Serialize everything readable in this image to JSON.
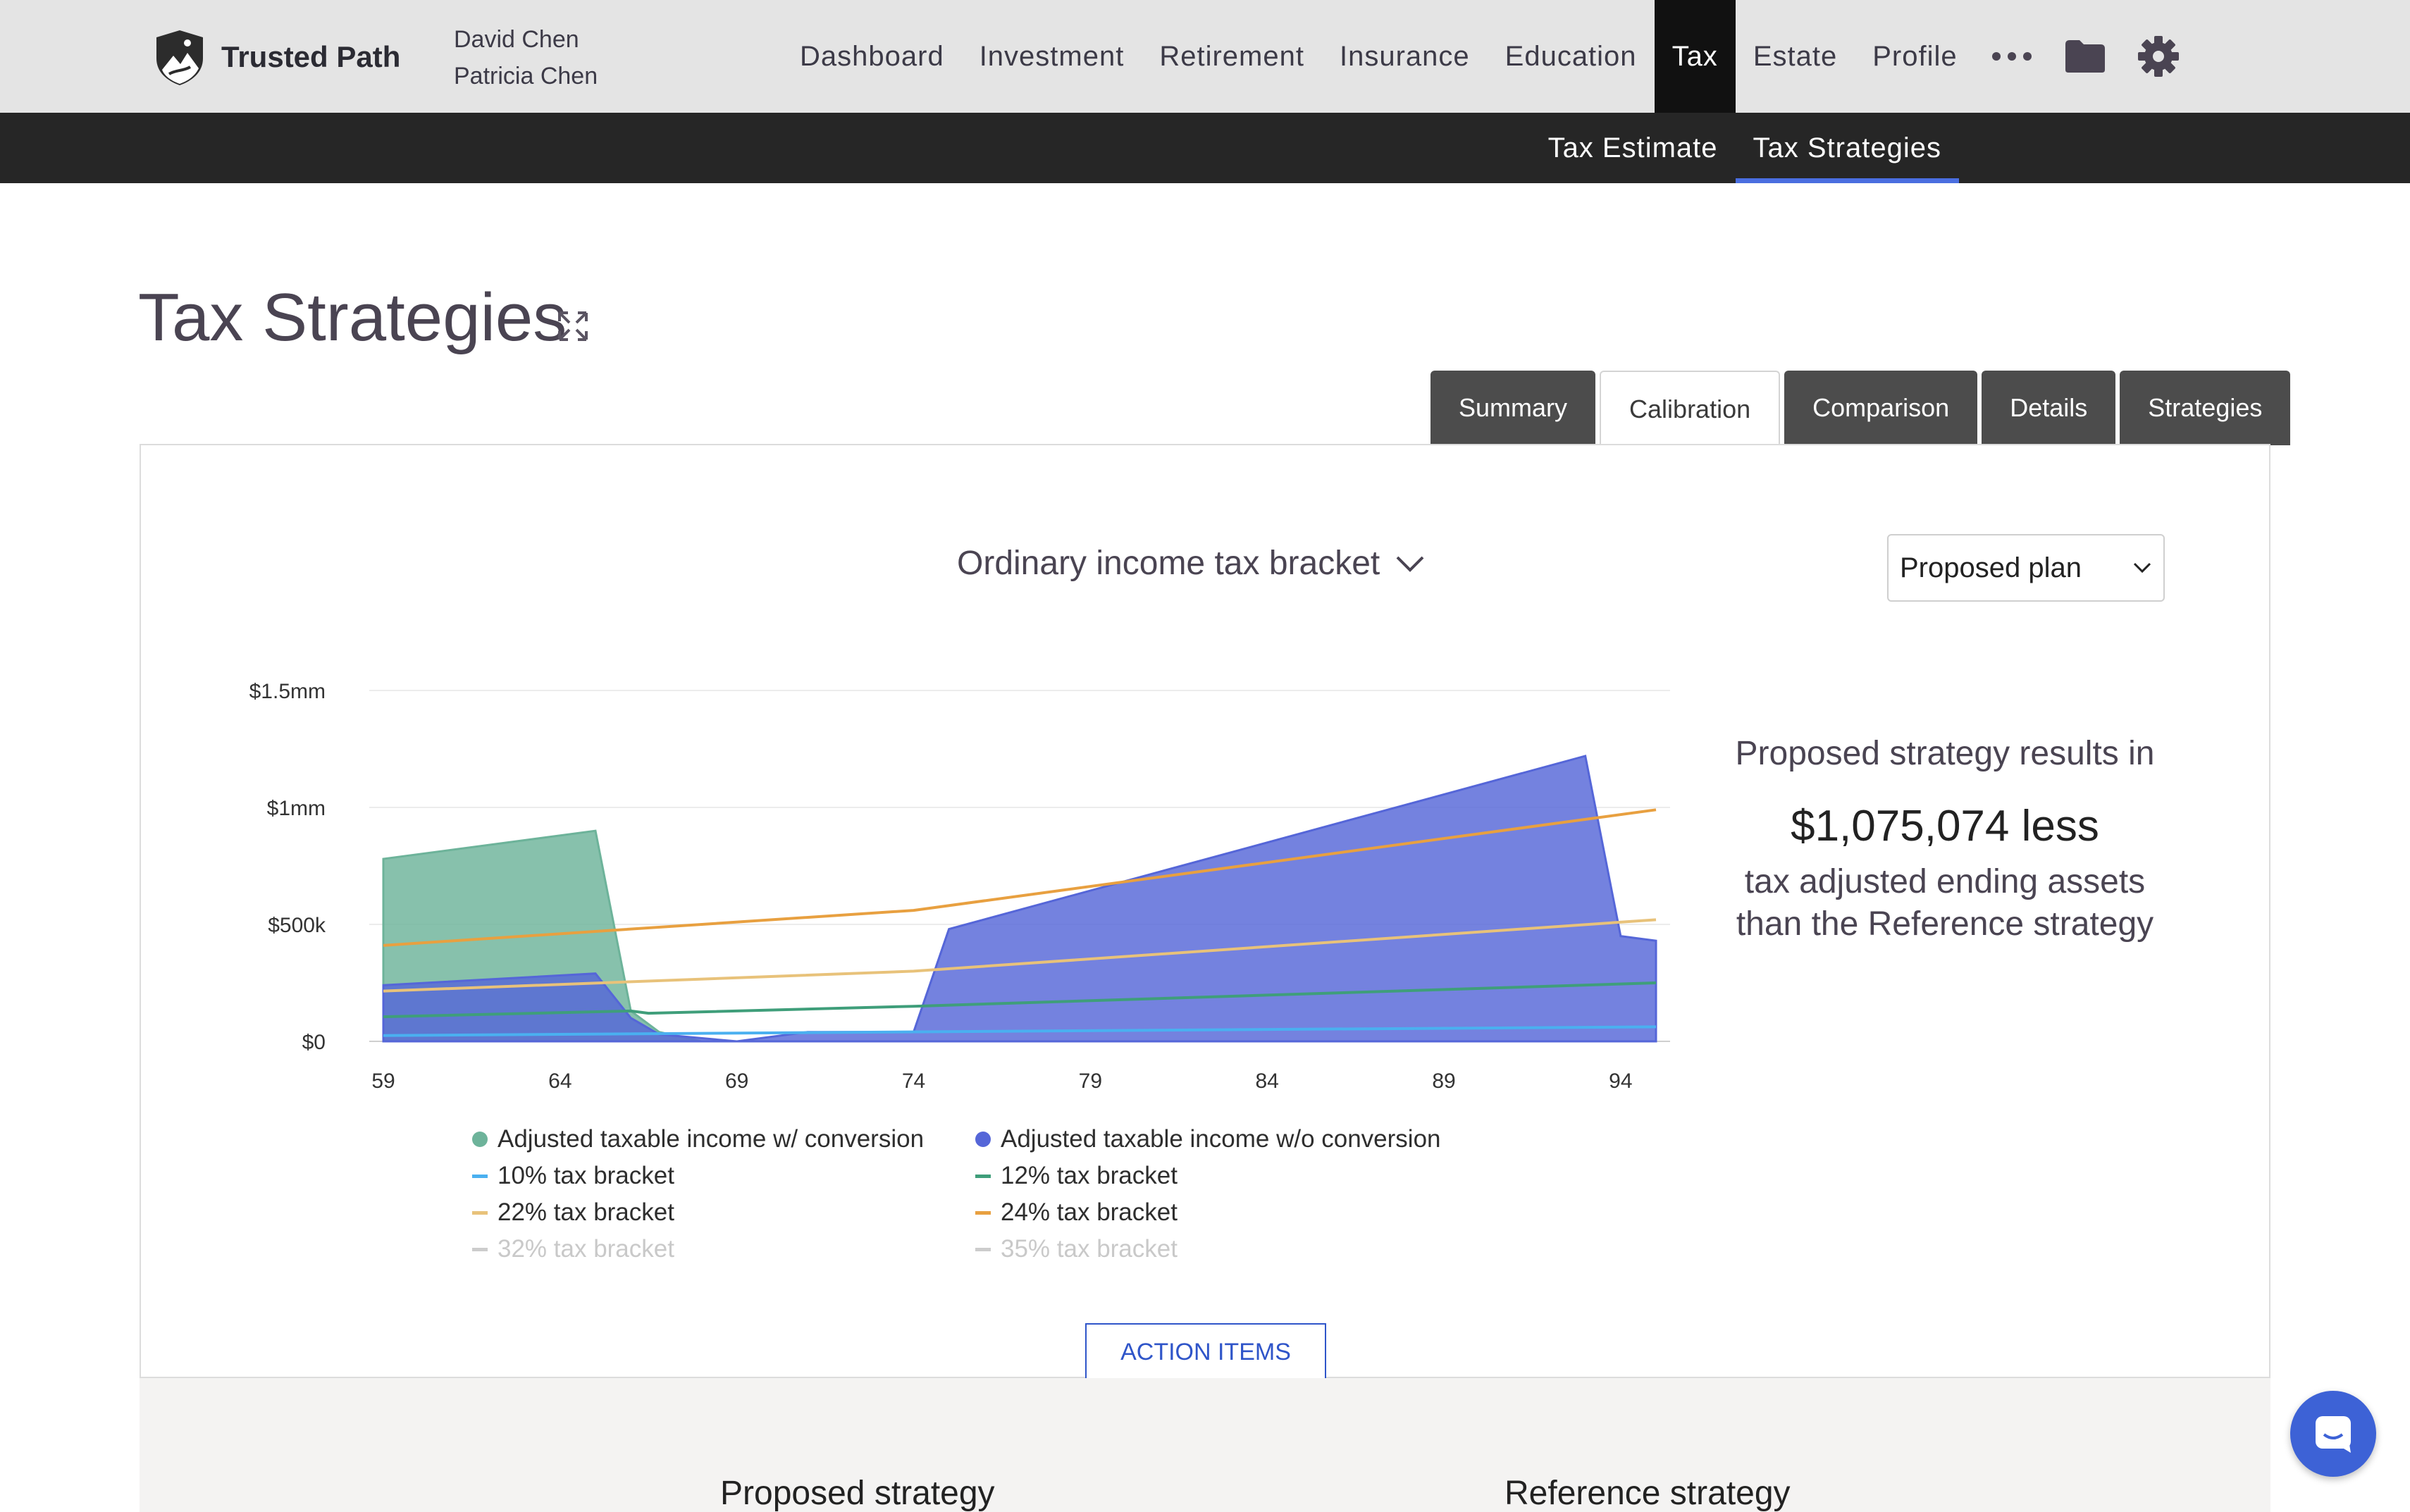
{
  "brand": {
    "name": "Trusted Path",
    "logo_icon": "shield-mountain-logo"
  },
  "clients": [
    "David Chen",
    "Patricia Chen"
  ],
  "nav": {
    "items": [
      "Dashboard",
      "Investment",
      "Retirement",
      "Insurance",
      "Education",
      "Tax",
      "Estate",
      "Profile"
    ],
    "active": "Tax",
    "icons": [
      "more-icon",
      "folder-icon",
      "gear-icon"
    ]
  },
  "subnav": {
    "items": [
      "Tax Estimate",
      "Tax Strategies"
    ],
    "active": "Tax Strategies"
  },
  "page": {
    "title": "Tax Strategies"
  },
  "tabs": {
    "items": [
      "Summary",
      "Calibration",
      "Comparison",
      "Details",
      "Strategies"
    ],
    "active": "Calibration"
  },
  "panel": {
    "metric_select": "Ordinary income tax bracket",
    "plan_select": "Proposed plan",
    "result": {
      "line1": "Proposed strategy results in",
      "amount": "$1,075,074 less",
      "line2": "tax adjusted ending assets",
      "line3": "than the Reference strategy"
    },
    "action_button": "ACTION ITEMS"
  },
  "chart_data": {
    "type": "area",
    "x": [
      59,
      64,
      69,
      74,
      79,
      84,
      89,
      94
    ],
    "x_ticks": [
      "59",
      "64",
      "69",
      "74",
      "79",
      "84",
      "89",
      "94"
    ],
    "y_ticks": [
      "$0",
      "$500k",
      "$1mm",
      "$1.5mm"
    ],
    "ylim": [
      0,
      1500000
    ],
    "xlim": [
      59,
      95
    ],
    "grid": true,
    "legend_position": "bottom",
    "series": [
      {
        "name": "Adjusted taxable income w/ conversion",
        "kind": "area",
        "color": "#6db39a",
        "points": [
          [
            59,
            780000
          ],
          [
            65,
            900000
          ],
          [
            66,
            130000
          ],
          [
            66.8,
            40000
          ],
          [
            68,
            0
          ],
          [
            95,
            0
          ]
        ]
      },
      {
        "name": "Adjusted taxable income w/o conversion",
        "kind": "area",
        "color": "#5566d8",
        "points": [
          [
            59,
            240000
          ],
          [
            65,
            290000
          ],
          [
            66,
            100000
          ],
          [
            66.8,
            30000
          ],
          [
            69,
            0
          ],
          [
            71,
            40000
          ],
          [
            74,
            40000
          ],
          [
            75,
            480000
          ],
          [
            93,
            1220000
          ],
          [
            94,
            450000
          ],
          [
            95,
            430000
          ]
        ]
      },
      {
        "name": "10% tax bracket",
        "kind": "line",
        "color": "#4ab0f0",
        "points": [
          [
            59,
            25000
          ],
          [
            95,
            62000
          ]
        ]
      },
      {
        "name": "12% tax bracket",
        "kind": "line",
        "color": "#3f9e7a",
        "points": [
          [
            59,
            105000
          ],
          [
            66,
            130000
          ],
          [
            66.5,
            120000
          ],
          [
            74,
            150000
          ],
          [
            95,
            250000
          ]
        ]
      },
      {
        "name": "22% tax bracket",
        "kind": "line",
        "color": "#e8c27a",
        "points": [
          [
            59,
            215000
          ],
          [
            74,
            300000
          ],
          [
            95,
            520000
          ]
        ]
      },
      {
        "name": "24% tax bracket",
        "kind": "line",
        "color": "#e8a040",
        "points": [
          [
            59,
            410000
          ],
          [
            74,
            560000
          ],
          [
            95,
            990000
          ]
        ]
      },
      {
        "name": "32% tax bracket",
        "kind": "line",
        "color": "#cccccc",
        "hidden": true,
        "points": []
      },
      {
        "name": "35% tax bracket",
        "kind": "line",
        "color": "#cccccc",
        "hidden": true,
        "points": []
      }
    ]
  },
  "bottom": {
    "proposed_title": "Proposed strategy",
    "reference_title": "Reference strategy"
  },
  "chat": {
    "icon": "chat-icon"
  }
}
